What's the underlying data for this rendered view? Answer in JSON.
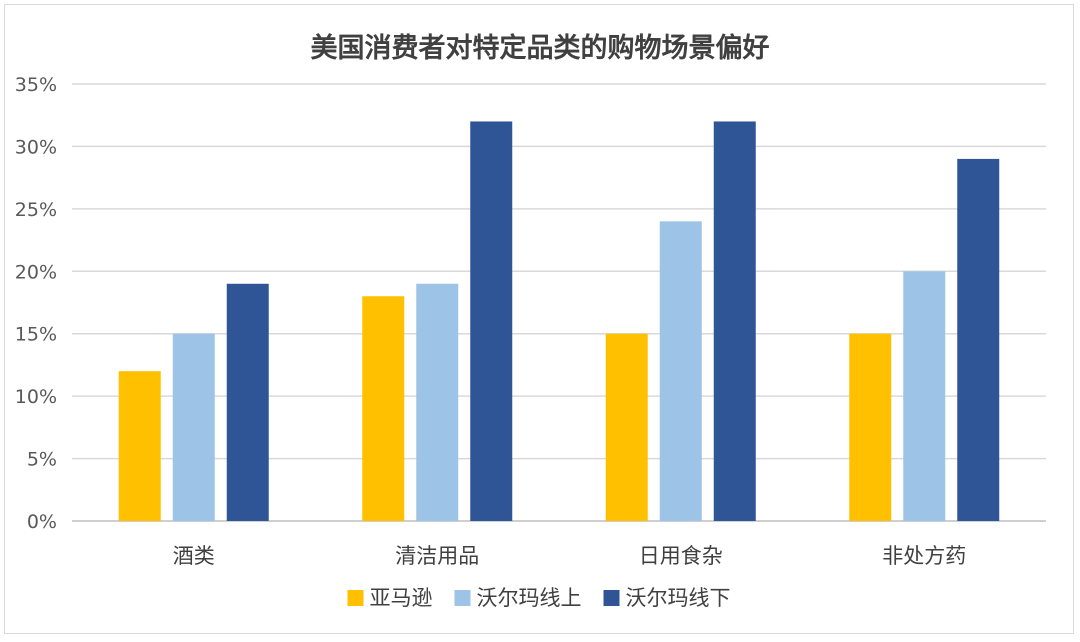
{
  "chart_data": {
    "type": "bar",
    "title": "美国消费者对特定品类的购物场景偏好",
    "categories": [
      "酒类",
      "清洁用品",
      "日用食杂",
      "非处方药"
    ],
    "series": [
      {
        "name": "亚马逊",
        "color": "#FFC000",
        "values": [
          12,
          18,
          15,
          15
        ]
      },
      {
        "name": "沃尔玛线上",
        "color": "#9DC3E6",
        "values": [
          15,
          19,
          24,
          20
        ]
      },
      {
        "name": "沃尔玛线下",
        "color": "#2F5597",
        "values": [
          19,
          32,
          32,
          29
        ]
      }
    ],
    "ylim": [
      0,
      35
    ],
    "ytick_step": 5,
    "ytick_labels": [
      "0%",
      "5%",
      "10%",
      "15%",
      "20%",
      "25%",
      "30%",
      "35%"
    ],
    "grid": true,
    "legend_position": "bottom"
  }
}
